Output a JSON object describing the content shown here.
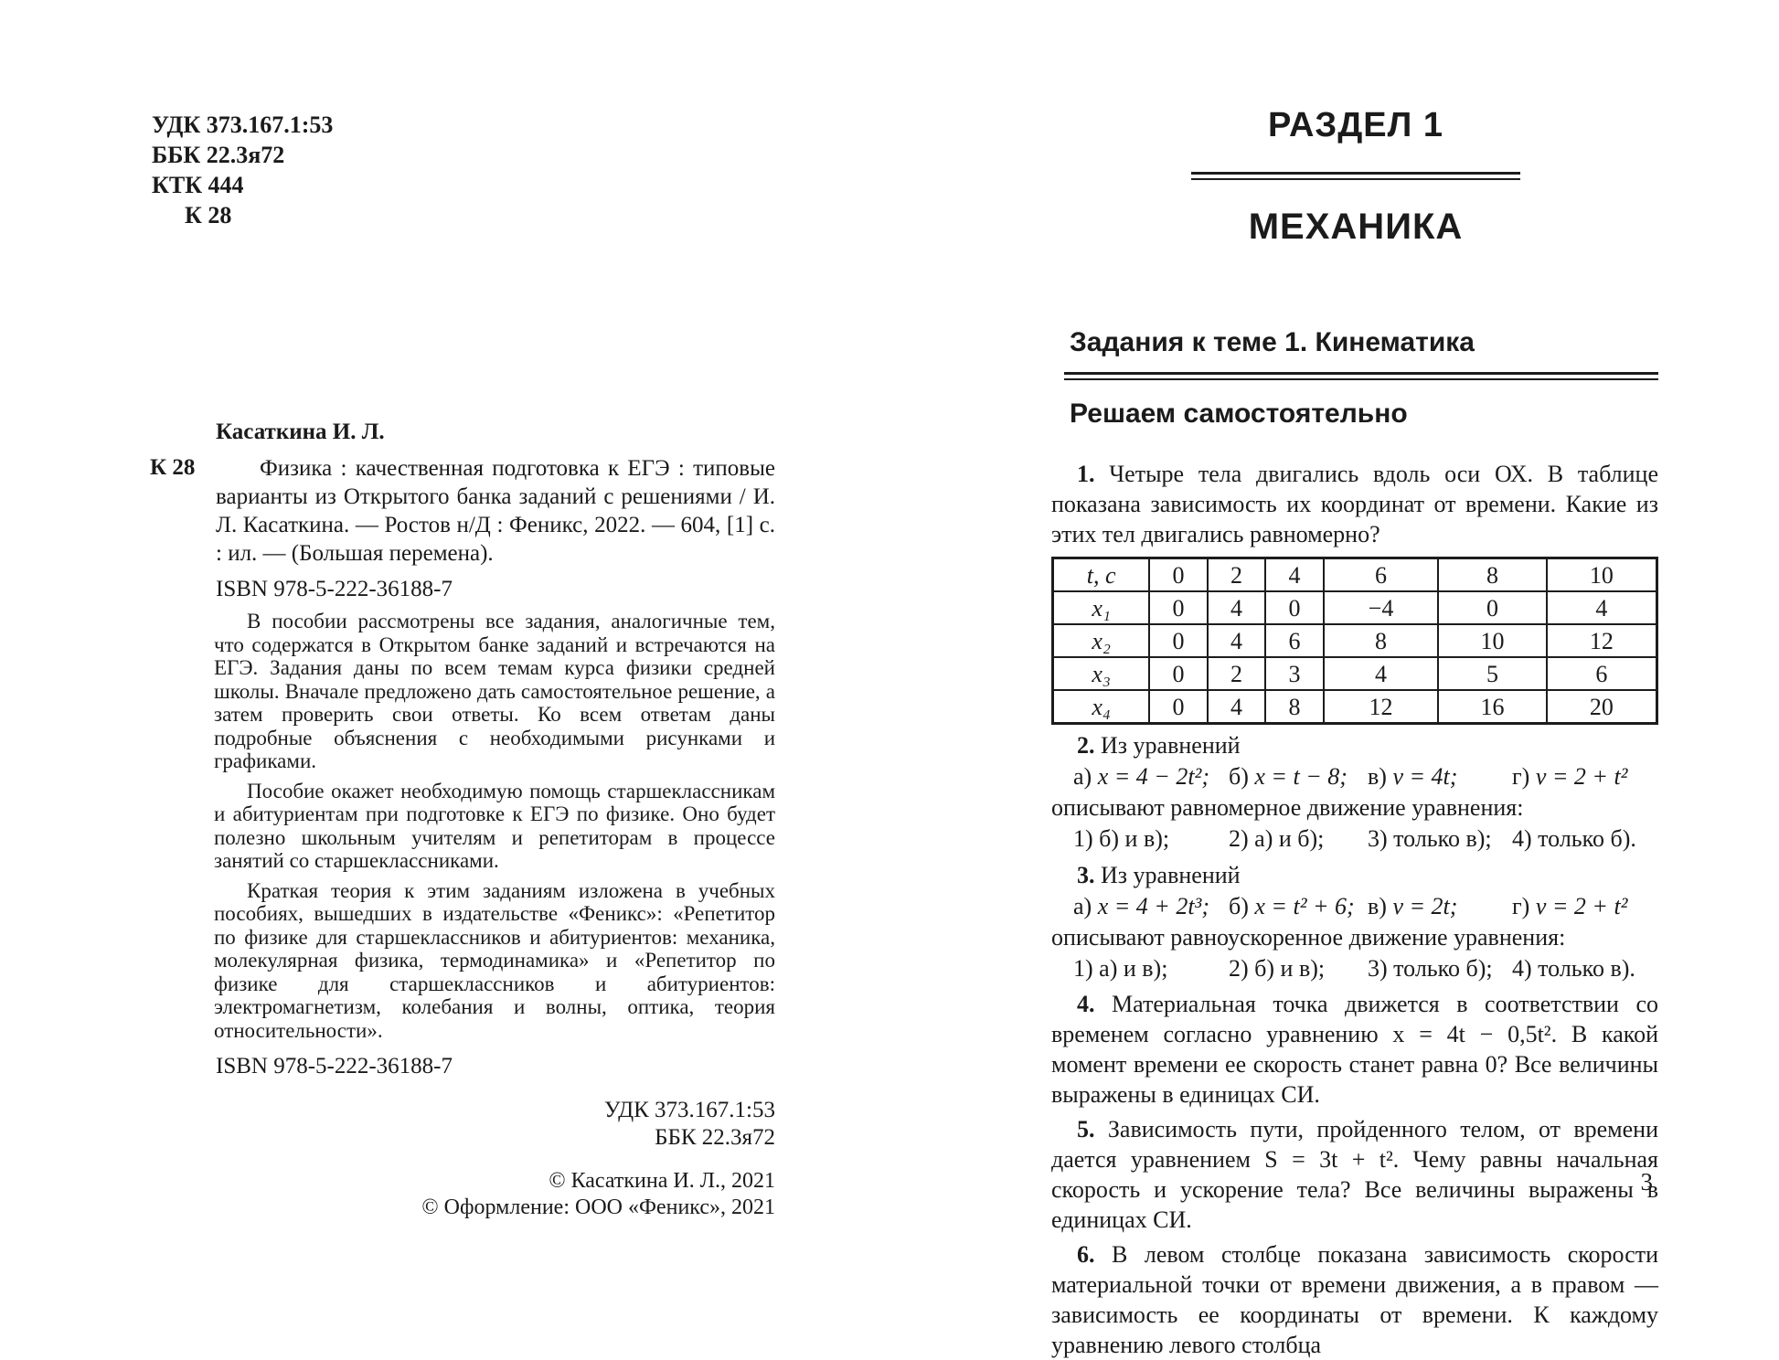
{
  "left_page": {
    "codes": {
      "udk": "УДК 373.167.1:53",
      "bbk": "ББК 22.3я72",
      "ktk": "КТК 444",
      "k28": "К 28"
    },
    "author": "Касаткина И. Л.",
    "entry_code": "К 28",
    "bibliographic_description": "Физика : качественная подготовка к ЕГЭ : типовые варианты из Открытого банка заданий с решениями / И. Л. Касаткина. — Ростов н/Д : Феникс, 2022. — 604, [1] с. : ил. — (Большая перемена).",
    "isbn_top": "ISBN 978-5-222-36188-7",
    "annotation_paragraphs": [
      "В пособии рассмотрены все задания, аналогичные тем, что содержатся в Открытом банке заданий и встречаются на ЕГЭ. Задания даны по всем темам курса физики средней школы. Вначале предложено дать самостоятельное решение, а затем проверить свои ответы. Ко всем ответам даны подробные объяснения с необходимыми рисунками и графиками.",
      "Пособие окажет необходимую помощь старшеклассникам и абитуриентам при подготовке к ЕГЭ по физике. Оно будет полезно школьным учителям и репетиторам в процессе занятий со старшеклассниками.",
      "Краткая теория к этим заданиям изложена в учебных пособиях, вышедших в издательстве «Феникс»: «Репетитор по физике для старшеклассников и абитуриентов: механика, молекулярная физика, термодинамика» и «Репетитор по физике для старшеклассников и абитуриентов: электромагнетизм, колебания и волны, оптика, теория относительности»."
    ],
    "isbn_bottom": "ISBN 978-5-222-36188-7",
    "udk_bottom": "УДК 373.167.1:53",
    "bbk_bottom": "ББК 22.3я72",
    "copyright_lines": [
      "© Касаткина И. Л., 2021",
      "© Оформление: ООО «Феникс», 2021"
    ]
  },
  "right_page": {
    "section_label": "РАЗДЕЛ 1",
    "section_title": "МЕХАНИКА",
    "topic_heading": "Задания к теме 1. Кинематика",
    "subheading": "Решаем самостоятельно",
    "problem1": {
      "num": "1.",
      "text": "Четыре тела двигались вдоль оси ОХ. В таблице показана зависимость их координат от времени. Какие из этих тел двигались равномерно?"
    },
    "table": {
      "rows": [
        [
          "t, с",
          "0",
          "2",
          "4",
          "6",
          "8",
          "10"
        ],
        [
          "x₁",
          "0",
          "4",
          "0",
          "−4",
          "0",
          "4"
        ],
        [
          "x₂",
          "0",
          "4",
          "6",
          "8",
          "10",
          "12"
        ],
        [
          "x₃",
          "0",
          "2",
          "3",
          "4",
          "5",
          "6"
        ],
        [
          "x₄",
          "0",
          "4",
          "8",
          "12",
          "16",
          "20"
        ]
      ]
    },
    "problem2": {
      "num": "2.",
      "intro": "Из уравнений",
      "equations": [
        {
          "label": "а)",
          "formula": "x = 4 − 2t²;"
        },
        {
          "label": "б)",
          "formula": "x = t − 8;"
        },
        {
          "label": "в)",
          "formula": "v = 4t;"
        },
        {
          "label": "г)",
          "formula": "v = 2 + t²"
        }
      ],
      "question": "описывают равномерное движение уравнения:",
      "options": [
        "1) б) и в);",
        "2) а) и б);",
        "3) только в);",
        "4) только б)."
      ]
    },
    "problem3": {
      "num": "3.",
      "intro": "Из уравнений",
      "equations": [
        {
          "label": "а)",
          "formula": "x = 4 + 2t³;"
        },
        {
          "label": "б)",
          "formula": "x = t² + 6;"
        },
        {
          "label": "в)",
          "formula": "v = 2t;"
        },
        {
          "label": "г)",
          "formula": "v = 2 + t²"
        }
      ],
      "question": "описывают равноускоренное движение уравнения:",
      "options": [
        "1) а) и в);",
        "2) б) и в);",
        "3) только б);",
        "4) только в)."
      ]
    },
    "problem4": {
      "num": "4.",
      "text": "Материальная точка движется в соответствии со временем согласно уравнению x = 4t − 0,5t². В какой момент времени ее скорость станет равна 0? Все величины выражены в единицах СИ."
    },
    "problem5": {
      "num": "5.",
      "text": "Зависимость пути, пройденного телом, от времени дается уравнением S = 3t + t². Чему равны начальная скорость и ускорение тела? Все величины выражены в единицах СИ."
    },
    "problem6": {
      "num": "6.",
      "text": "В левом столбце показана зависимость скорости материальной точки от времени движения, а в правом — зависимость ее координаты от времени. К каждому уравнению левого столбца"
    },
    "page_number": "3"
  }
}
